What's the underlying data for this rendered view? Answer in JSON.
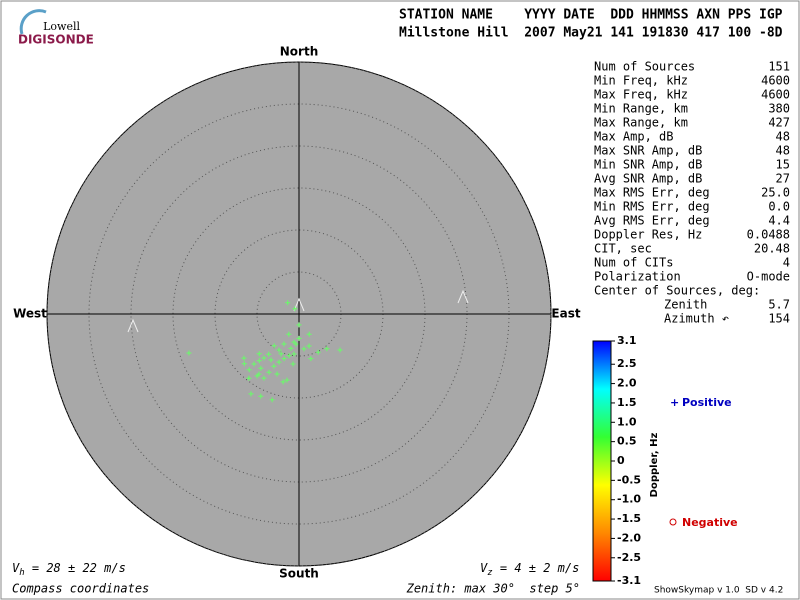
{
  "header": {
    "logo_top": "Lowell",
    "logo_bottom": "DIGISONDE",
    "line1": "STATION NAME    YYYY DATE  DDD HHMMSS AXN PPS IGP",
    "line2": "Millstone Hill  2007 May21 141 191830 417 100 -8D"
  },
  "chart_data": {
    "type": "polar-scatter",
    "directions": {
      "north": "North",
      "south": "South",
      "east": "East",
      "west": "West"
    },
    "rlim": [
      0,
      30
    ],
    "rticks": [
      5,
      10,
      15,
      20,
      25,
      30
    ],
    "series": [
      {
        "color": "#66ff66",
        "zenith": [
          13.9,
          6.5,
          5.1,
          5.3,
          1.9,
          1.3,
          2.7,
          2.9,
          2.7,
          3.4,
          4.0,
          4.8,
          4.9,
          6.0,
          6.7,
          7.3,
          8.0,
          8.4,
          8.8,
          8.9,
          8.6,
          8.7,
          7.8,
          6.9,
          6.2,
          5.6,
          5.1,
          4.8,
          4.2,
          4.0,
          4.2,
          5.2,
          6.4,
          7.9,
          8.9,
          7.6,
          6.0,
          8.0,
          11.1,
          10.8,
          10.7,
          8.3,
          5.5,
          9.7,
          3.6,
          6.7,
          0.8
        ],
        "azimuth": [
          250.5,
          131.3,
          153.4,
          141.3,
          315,
          180,
          206.6,
          180,
          153.4,
          190.1,
          206.6,
          218,
          209.1,
          216.9,
          218.5,
          220.4,
          222,
          231.3,
          227.7,
          221.8,
          213.7,
          208.7,
          207.3,
          205.7,
          202.6,
          198.4,
          193.4,
          187.1,
          171.9,
          162.6,
          193.2,
          204.2,
          211.3,
          215.1,
          214.1,
          200.1,
          186.8,
          190.3,
          211,
          204.9,
          197.4,
          193.2,
          165.1,
          218,
          185.7,
          225,
          321.3
        ]
      }
    ],
    "colorbar": {
      "label": "Doppler, Hz",
      "ylim": [
        -3.1,
        3.1
      ],
      "yticks": [
        3.1,
        2.5,
        {
          "value": 2,
          "label": "2.0"
        },
        1.5,
        {
          "value": 1,
          "label": "1.0"
        },
        0.5,
        0,
        -0.5,
        {
          "value": -1,
          "label": "-1.0"
        },
        -1.5,
        {
          "value": -2,
          "label": "-2.0"
        },
        -2.5,
        -3.1
      ],
      "colors": [
        "#0000ff",
        "#00ffff",
        "#33ff33",
        "#ffff00",
        "#ff8800",
        "#ff0000"
      ]
    },
    "legend": {
      "positive": "Positive",
      "negative": "Negative"
    }
  },
  "stats": [
    [
      "Num of Sources",
      "151"
    ],
    [
      "Min Freq, kHz",
      "4600"
    ],
    [
      "Max Freq, kHz",
      "4600"
    ],
    [
      "Min Range, km",
      "380"
    ],
    [
      "Max Range, km",
      "427"
    ],
    [
      "Max Amp, dB",
      "48"
    ],
    [
      "Max SNR Amp, dB",
      "48"
    ],
    [
      "Min SNR Amp, dB",
      "15"
    ],
    [
      "Avg SNR Amp, dB",
      "27"
    ],
    [
      "Max RMS Err, deg",
      "25.0"
    ],
    [
      "Min RMS Err, deg",
      "0.0"
    ],
    [
      "Avg RMS Err, deg",
      "4.4"
    ],
    [
      "Doppler Res, Hz",
      "0.0488"
    ],
    [
      "CIT, sec",
      "20.48"
    ],
    [
      "Num of CITs",
      "4"
    ],
    [
      "Polarization",
      "O-mode"
    ]
  ],
  "center": {
    "title": "Center of Sources, deg:",
    "rows": [
      [
        "Zenith",
        "5.7"
      ],
      [
        "Azimuth ↶",
        "154"
      ]
    ]
  },
  "footer": {
    "vh_v": "V",
    "vh_sub": "h",
    "vh_rest": " = 28 ± 22 m/s",
    "vz_v": "V",
    "vz_sub": "z",
    "vz_rest": " = 4 ± 2 m/s",
    "coords": "Compass coordinates",
    "zenith": "Zenith: max 30°  step 5°",
    "version": "ShowSkymap v 1.0  SD v 4.2"
  }
}
